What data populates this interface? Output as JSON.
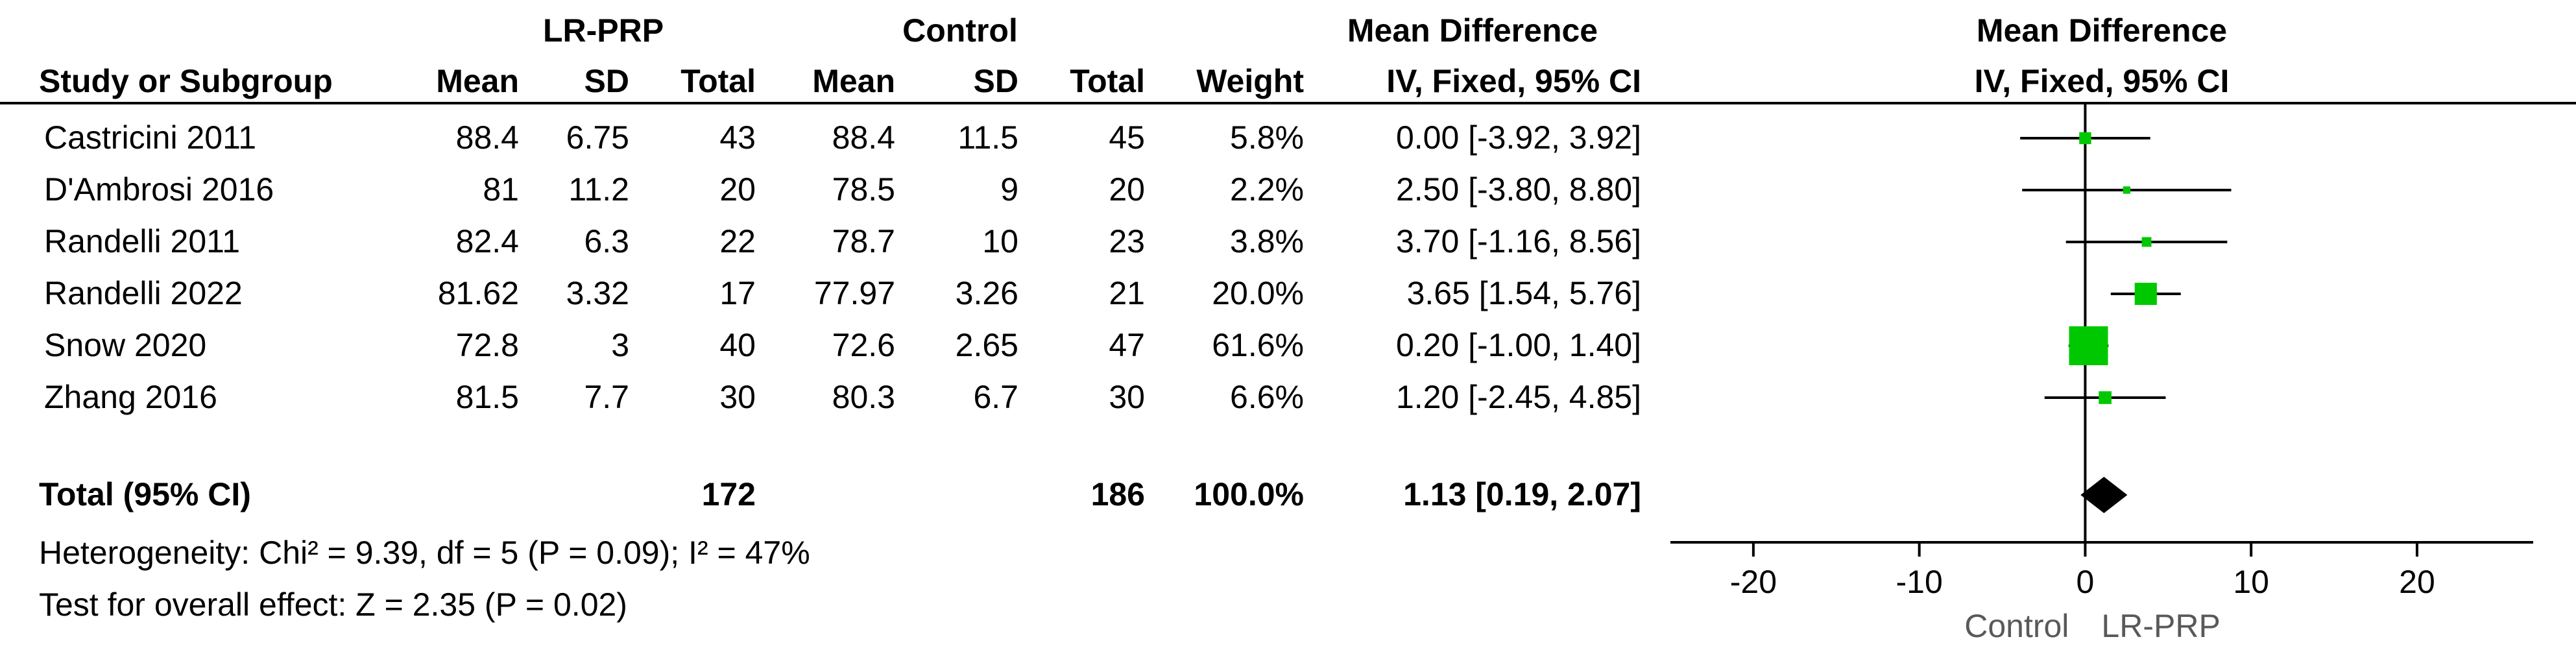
{
  "headers": {
    "group1": "LR-PRP",
    "group2": "Control",
    "md_table": "Mean Difference",
    "md_plot": "Mean Difference",
    "study": "Study or Subgroup",
    "mean1": "Mean",
    "sd1": "SD",
    "total1": "Total",
    "mean2": "Mean",
    "sd2": "SD",
    "total2": "Total",
    "weight": "Weight",
    "method_table": "IV, Fixed, 95% CI",
    "method_plot": "IV, Fixed, 95% CI"
  },
  "studies": [
    {
      "name": "Castricini 2011",
      "mean1": "88.4",
      "sd1": "6.75",
      "total1": "43",
      "mean2": "88.4",
      "sd2": "11.5",
      "total2": "45",
      "weight": "5.8%",
      "ci_text": "0.00 [-3.92, 3.92]"
    },
    {
      "name": "D'Ambrosi 2016",
      "mean1": "81",
      "sd1": "11.2",
      "total1": "20",
      "mean2": "78.5",
      "sd2": "9",
      "total2": "20",
      "weight": "2.2%",
      "ci_text": "2.50 [-3.80, 8.80]"
    },
    {
      "name": "Randelli 2011",
      "mean1": "82.4",
      "sd1": "6.3",
      "total1": "22",
      "mean2": "78.7",
      "sd2": "10",
      "total2": "23",
      "weight": "3.8%",
      "ci_text": "3.70 [-1.16, 8.56]"
    },
    {
      "name": "Randelli 2022",
      "mean1": "81.62",
      "sd1": "3.32",
      "total1": "17",
      "mean2": "77.97",
      "sd2": "3.26",
      "total2": "21",
      "weight": "20.0%",
      "ci_text": "3.65 [1.54, 5.76]"
    },
    {
      "name": "Snow 2020",
      "mean1": "72.8",
      "sd1": "3",
      "total1": "40",
      "mean2": "72.6",
      "sd2": "2.65",
      "total2": "47",
      "weight": "61.6%",
      "ci_text": "0.20 [-1.00, 1.40]"
    },
    {
      "name": "Zhang 2016",
      "mean1": "81.5",
      "sd1": "7.7",
      "total1": "30",
      "mean2": "80.3",
      "sd2": "6.7",
      "total2": "30",
      "weight": "6.6%",
      "ci_text": "1.20 [-2.45, 4.85]"
    }
  ],
  "total": {
    "label": "Total (95% CI)",
    "total1": "172",
    "total2": "186",
    "weight": "100.0%",
    "ci_text": "1.13 [0.19, 2.07]"
  },
  "heterogeneity": "Heterogeneity: Chi² = 9.39, df = 5 (P = 0.09); I² = 47%",
  "overall_effect": "Test for overall effect: Z = 2.35 (P = 0.02)",
  "chart_data": {
    "type": "forest",
    "title": "Mean Difference",
    "subtitle": "IV, Fixed, 95% CI",
    "xlim": [
      -25,
      27
    ],
    "x_ticks": [
      -20,
      -10,
      0,
      10,
      20
    ],
    "x_tick_labels": [
      "-20",
      "-10",
      "0",
      "10",
      "20"
    ],
    "favours_left": "Control",
    "favours_right": "LR-PRP",
    "marker_color": "#00c800",
    "diamond_color": "#000000",
    "points": [
      {
        "name": "Castricini 2011",
        "estimate": 0.0,
        "lower": -3.92,
        "upper": 3.92,
        "weight": 5.8
      },
      {
        "name": "D'Ambrosi 2016",
        "estimate": 2.5,
        "lower": -3.8,
        "upper": 8.8,
        "weight": 2.2
      },
      {
        "name": "Randelli 2011",
        "estimate": 3.7,
        "lower": -1.16,
        "upper": 8.56,
        "weight": 3.8
      },
      {
        "name": "Randelli 2022",
        "estimate": 3.65,
        "lower": 1.54,
        "upper": 5.76,
        "weight": 20.0
      },
      {
        "name": "Snow 2020",
        "estimate": 0.2,
        "lower": -1.0,
        "upper": 1.4,
        "weight": 61.6
      },
      {
        "name": "Zhang 2016",
        "estimate": 1.2,
        "lower": -2.45,
        "upper": 4.85,
        "weight": 6.6
      }
    ],
    "pooled": {
      "estimate": 1.13,
      "lower": 0.19,
      "upper": 2.07
    }
  }
}
